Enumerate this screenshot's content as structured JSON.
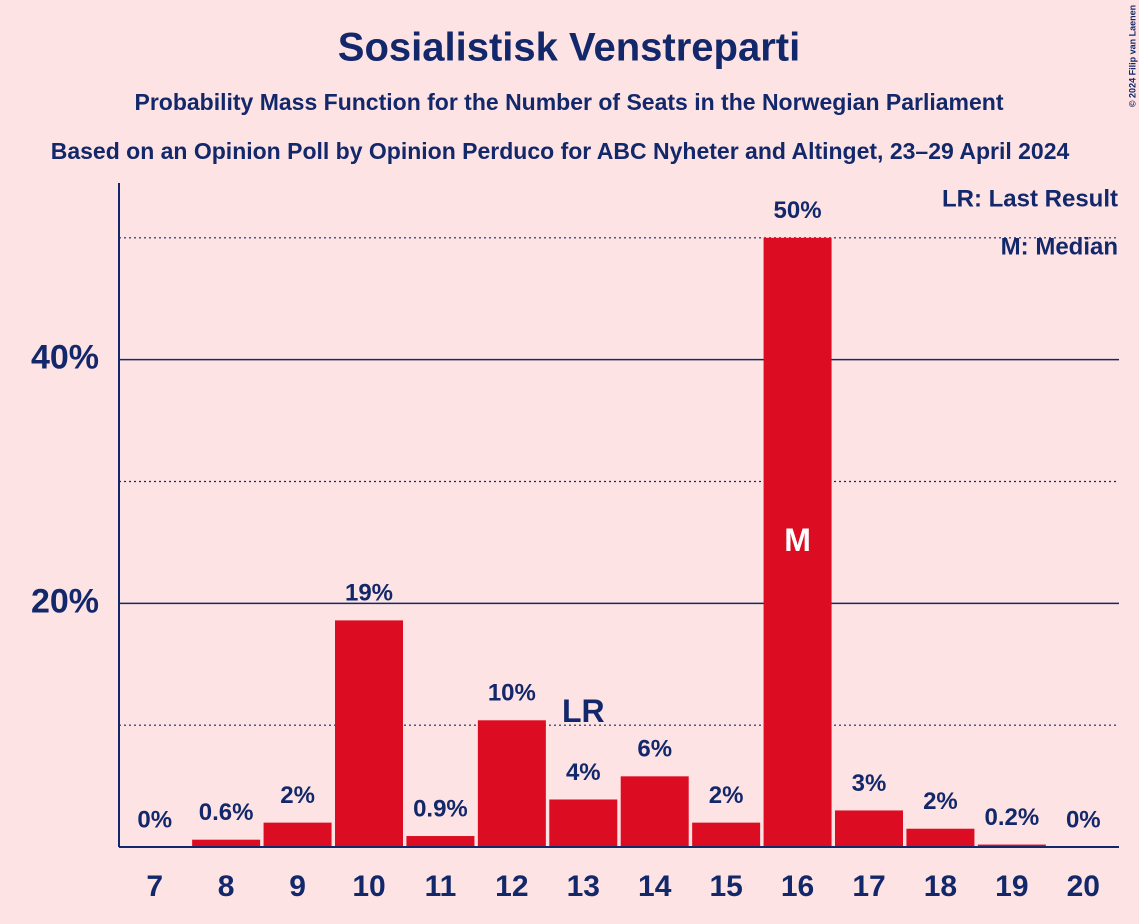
{
  "chart_data": {
    "type": "bar",
    "title": "Sosialistisk Venstreparti",
    "subtitle": "Probability Mass Function for the Number of Seats in the Norwegian Parliament",
    "source": "Based on an Opinion Poll by Opinion Perduco for ABC Nyheter and Altinget, 23–29 April 2024",
    "copyright": "© 2024 Filip van Laenen",
    "categories": [
      "7",
      "8",
      "9",
      "10",
      "11",
      "12",
      "13",
      "14",
      "15",
      "16",
      "17",
      "18",
      "19",
      "20"
    ],
    "values": [
      0,
      0.6,
      2,
      18.6,
      0.9,
      10.4,
      3.9,
      5.8,
      2,
      50,
      3,
      1.5,
      0.2,
      0
    ],
    "value_labels": [
      "0%",
      "0.6%",
      "2%",
      "19%",
      "0.9%",
      "10%",
      "4%",
      "6%",
      "2%",
      "50%",
      "3%",
      "2%",
      "0.2%",
      "0%"
    ],
    "color": "#dc0d22",
    "ylim": [
      0,
      54.5
    ],
    "yticks": [
      {
        "value": 20,
        "label": "20%"
      },
      {
        "value": 40,
        "label": "40%"
      }
    ],
    "minor_yticks": [
      10,
      30,
      50
    ],
    "grid": true,
    "annotations": [
      {
        "x": "13",
        "text": "LR"
      },
      {
        "x": "16",
        "text": "M"
      }
    ],
    "legend": [
      "LR: Last Result",
      "M: Median"
    ]
  }
}
